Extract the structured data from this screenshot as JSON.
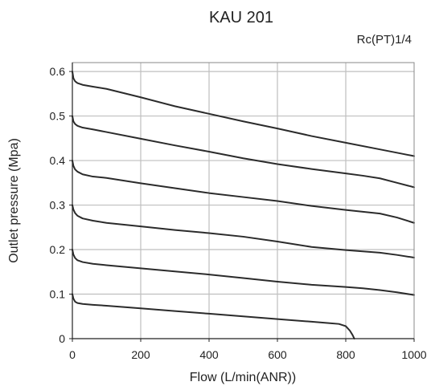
{
  "chart_data": {
    "type": "line",
    "title": "KAU 201",
    "subtitle": "Rc(PT)1/4",
    "xlabel": "Flow (L/min(ANR))",
    "ylabel": "Outlet pressure (Mpa)",
    "xlim": [
      0,
      1000
    ],
    "ylim": [
      0,
      0.62
    ],
    "xticks": [
      "0",
      "200",
      "400",
      "600",
      "800",
      "1000"
    ],
    "yticks": [
      "0",
      "0.1",
      "0.2",
      "0.3",
      "0.4",
      "0.5",
      "0.6"
    ],
    "grid": true,
    "legend": "none",
    "line_color": "#2b2b2b",
    "grid_color": "#bfbfbf",
    "series": [
      {
        "x": [
          0,
          3,
          8,
          15,
          30,
          60,
          100,
          200,
          300,
          400,
          500,
          600,
          700,
          800,
          900,
          960,
          1000
        ],
        "y": [
          0.6,
          0.585,
          0.578,
          0.574,
          0.57,
          0.566,
          0.561,
          0.542,
          0.522,
          0.505,
          0.488,
          0.472,
          0.455,
          0.44,
          0.425,
          0.416,
          0.41
        ]
      },
      {
        "x": [
          0,
          3,
          8,
          15,
          30,
          60,
          100,
          200,
          300,
          400,
          500,
          600,
          700,
          800,
          850,
          900,
          950,
          1000
        ],
        "y": [
          0.5,
          0.488,
          0.482,
          0.478,
          0.474,
          0.47,
          0.464,
          0.449,
          0.434,
          0.42,
          0.405,
          0.392,
          0.381,
          0.371,
          0.366,
          0.36,
          0.35,
          0.34
        ]
      },
      {
        "x": [
          0,
          3,
          8,
          15,
          30,
          60,
          100,
          200,
          300,
          400,
          500,
          600,
          700,
          800,
          850,
          900,
          950,
          1000
        ],
        "y": [
          0.4,
          0.388,
          0.38,
          0.375,
          0.369,
          0.364,
          0.361,
          0.349,
          0.338,
          0.327,
          0.318,
          0.309,
          0.298,
          0.289,
          0.285,
          0.281,
          0.272,
          0.26
        ]
      },
      {
        "x": [
          0,
          3,
          8,
          15,
          30,
          60,
          100,
          200,
          300,
          400,
          500,
          600,
          700,
          800,
          850,
          900,
          950,
          1000
        ],
        "y": [
          0.3,
          0.29,
          0.282,
          0.276,
          0.27,
          0.265,
          0.26,
          0.252,
          0.244,
          0.237,
          0.229,
          0.218,
          0.206,
          0.199,
          0.196,
          0.193,
          0.188,
          0.182
        ]
      },
      {
        "x": [
          0,
          3,
          8,
          15,
          30,
          60,
          100,
          200,
          300,
          400,
          500,
          600,
          700,
          800,
          850,
          900,
          950,
          1000
        ],
        "y": [
          0.2,
          0.189,
          0.181,
          0.176,
          0.172,
          0.168,
          0.165,
          0.158,
          0.151,
          0.144,
          0.136,
          0.128,
          0.121,
          0.116,
          0.113,
          0.109,
          0.104,
          0.098
        ]
      },
      {
        "x": [
          0,
          3,
          8,
          15,
          30,
          60,
          100,
          200,
          300,
          400,
          500,
          600,
          700,
          750,
          780,
          800,
          812,
          820,
          825
        ],
        "y": [
          0.1,
          0.09,
          0.083,
          0.08,
          0.078,
          0.076,
          0.074,
          0.068,
          0.062,
          0.056,
          0.05,
          0.044,
          0.038,
          0.035,
          0.033,
          0.028,
          0.018,
          0.008,
          0.0
        ]
      }
    ]
  }
}
